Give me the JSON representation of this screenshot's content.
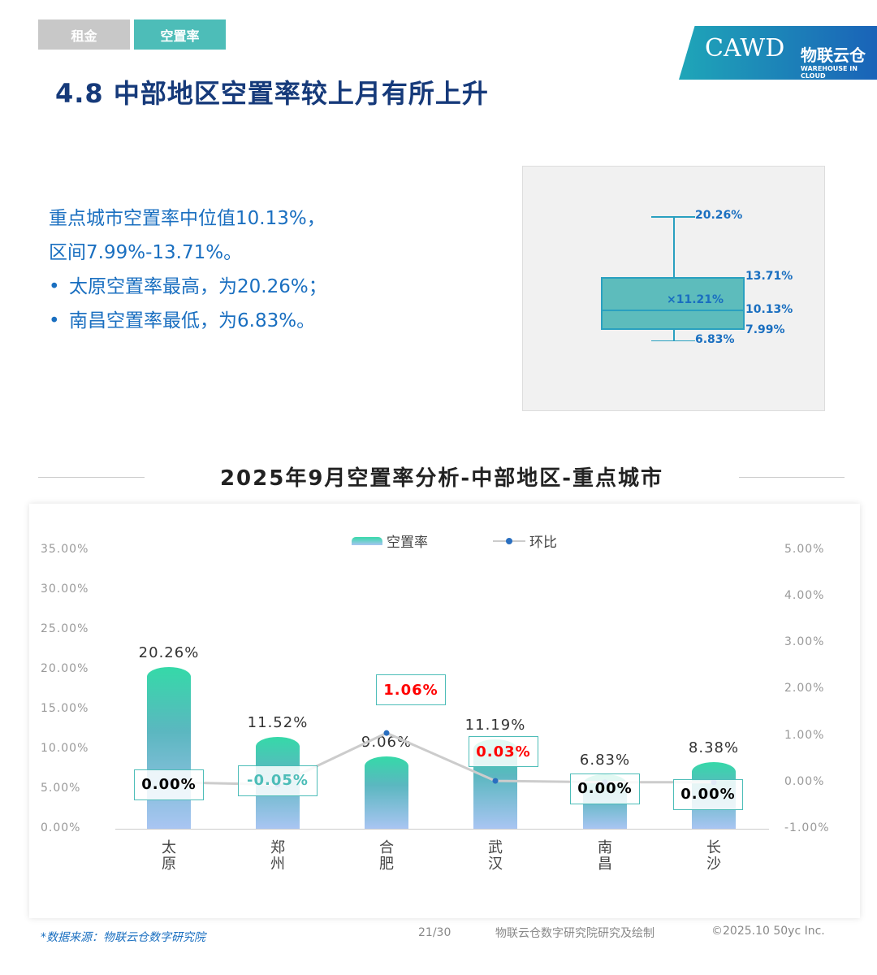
{
  "tabs": [
    {
      "label": "租金"
    },
    {
      "label": "空置率"
    }
  ],
  "logo": {
    "cawd": "CAWD",
    "cn": "物联云仓",
    "en": "WAREHOUSE IN CLOUD"
  },
  "title": "4.8 中部地区空置率较上月有所上升",
  "summary": {
    "line1": "重点城市空置率中位值10.13%，",
    "line2": "区间7.99%-13.71%。",
    "bullet1": "太原空置率最高，为20.26%；",
    "bullet2": "南昌空置率最低，为6.83%。"
  },
  "boxplot": {
    "max": 20.26,
    "q3": 13.71,
    "median": 10.13,
    "q1": 7.99,
    "min": 6.83,
    "mean": 11.21,
    "labels": {
      "max": "20.26%",
      "q3": "13.71%",
      "median": "10.13%",
      "q1": "7.99%",
      "min": "6.83%",
      "mean": "×11.21%"
    }
  },
  "chart_data": {
    "type": "bar+line",
    "title": "2025年9月空置率分析-中部地区-重点城市",
    "categories": [
      "太原",
      "郑州",
      "合肥",
      "武汉",
      "南昌",
      "长沙"
    ],
    "series": [
      {
        "name": "空置率",
        "type": "bar",
        "axis": "left",
        "values": [
          20.26,
          11.52,
          9.06,
          11.19,
          6.83,
          8.38
        ],
        "labels": [
          "20.26%",
          "11.52%",
          "9.06%",
          "11.19%",
          "6.83%",
          "8.38%"
        ]
      },
      {
        "name": "环比",
        "type": "line",
        "axis": "right",
        "values": [
          0.0,
          -0.05,
          1.06,
          0.03,
          0.0,
          0.0
        ],
        "labels": [
          "0.00%",
          "-0.05%",
          "1.06%",
          "0.03%",
          "0.00%",
          "0.00%"
        ]
      }
    ],
    "left_axis": {
      "ylim": [
        0,
        35
      ],
      "ticks": [
        "0.00%",
        "5.00%",
        "10.00%",
        "15.00%",
        "20.00%",
        "25.00%",
        "30.00%",
        "35.00%"
      ]
    },
    "right_axis": {
      "ylim": [
        -1,
        5
      ],
      "ticks": [
        "-1.00%",
        "0.00%",
        "1.00%",
        "2.00%",
        "3.00%",
        "4.00%",
        "5.00%"
      ]
    },
    "legend": "top",
    "grid": false,
    "colors": {
      "bar_top": "#35d9a8",
      "bar_bottom": "#a9c5f2",
      "line": "#cccccc",
      "point": "#2a6fc0",
      "positive": "#ff0000",
      "negative": "#4dbdb8",
      "zero": "#000000"
    }
  },
  "footer": {
    "source": "*数据来源：物联云仓数字研究院",
    "page": "21/30",
    "credit": "物联云仓数字研究院研究及绘制",
    "copyright": "©2025.10 50yc Inc."
  }
}
